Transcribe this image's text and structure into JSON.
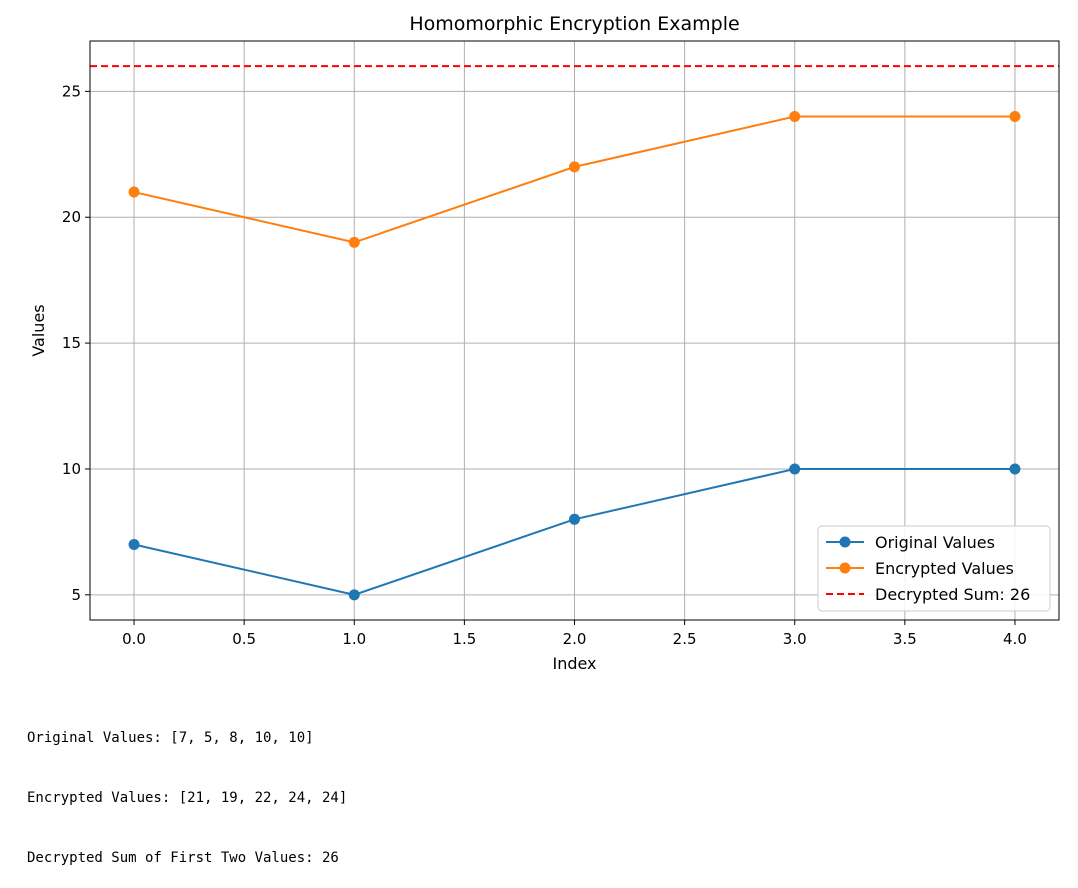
{
  "chart_data": {
    "type": "line",
    "title": "Homomorphic Encryption Example",
    "xlabel": "Index",
    "ylabel": "Values",
    "xlim": [
      -0.2,
      4.2
    ],
    "ylim": [
      4,
      27
    ],
    "xticks": [
      0.0,
      0.5,
      1.0,
      1.5,
      2.0,
      2.5,
      3.0,
      3.5,
      4.0
    ],
    "xtick_labels": [
      "0.0",
      "0.5",
      "1.0",
      "1.5",
      "2.0",
      "2.5",
      "3.0",
      "3.5",
      "4.0"
    ],
    "yticks": [
      5,
      10,
      15,
      20,
      25
    ],
    "ytick_labels": [
      "5",
      "10",
      "15",
      "20",
      "25"
    ],
    "grid": true,
    "legend_position": "bottom-right",
    "x": [
      0,
      1,
      2,
      3,
      4
    ],
    "series": [
      {
        "name": "Original Values",
        "values": [
          7,
          5,
          8,
          10,
          10
        ],
        "color": "#1f77b4",
        "marker": "circle"
      },
      {
        "name": "Encrypted Values",
        "values": [
          21,
          19,
          22,
          24,
          24
        ],
        "color": "#ff7f0e",
        "marker": "circle"
      }
    ],
    "hlines": [
      {
        "name": "Decrypted Sum: 26",
        "y": 26,
        "color": "#ff0000",
        "style": "dashed"
      }
    ]
  },
  "output": {
    "lines": [
      "Original Values: [7, 5, 8, 10, 10]",
      "Encrypted Values: [21, 19, 22, 24, 24]",
      "Decrypted Sum of First Two Values: 26"
    ]
  }
}
